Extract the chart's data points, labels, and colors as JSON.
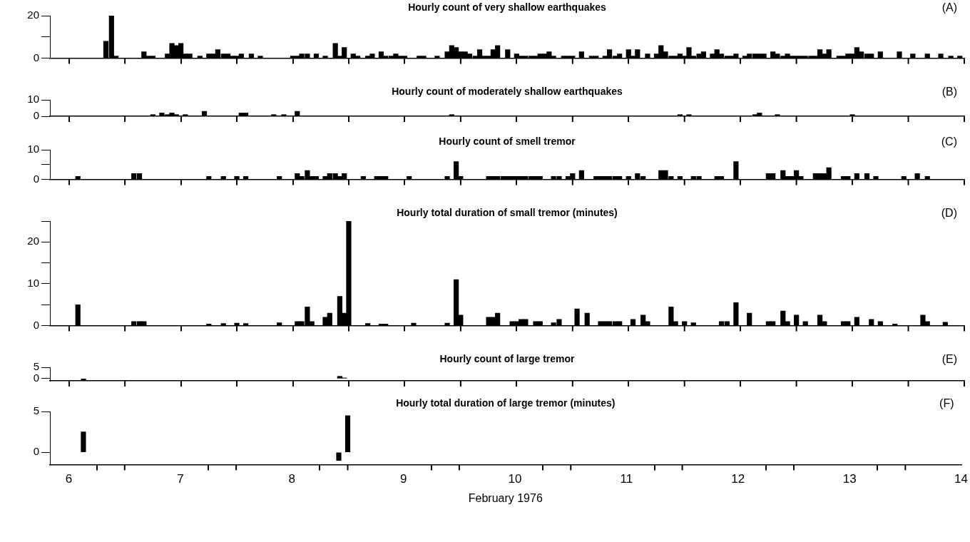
{
  "chart_data": [
    {
      "type": "bar",
      "title": "Hourly count of very shallow earthquakes",
      "annotations": [
        "(A)"
      ],
      "color": "#000000",
      "tick_labels": "y",
      "xlim": [
        5.83,
        14
      ],
      "xticks": [
        {
          "value": 6.5,
          "label": null
        },
        {
          "value": 7.5,
          "label": null
        },
        {
          "value": 8.5,
          "label": null
        },
        {
          "value": 9.5,
          "label": null
        },
        {
          "value": 10.5,
          "label": null
        },
        {
          "value": 11.5,
          "label": null
        },
        {
          "value": 12.5,
          "label": null
        },
        {
          "value": 13.5,
          "label": null
        }
      ],
      "ylim": [
        0,
        20
      ],
      "yticks": [
        0,
        {
          "value": 10,
          "label": null
        },
        20
      ],
      "x": [
        6.33,
        6.38,
        6.42,
        6.67,
        6.71,
        6.75,
        6.88,
        6.92,
        6.96,
        7.0,
        7.04,
        7.08,
        7.17,
        7.25,
        7.29,
        7.33,
        7.38,
        7.42,
        7.46,
        7.5,
        7.54,
        7.63,
        7.71,
        8.0,
        8.04,
        8.08,
        8.13,
        8.21,
        8.29,
        8.38,
        8.42,
        8.46,
        8.54,
        8.58,
        8.67,
        8.71,
        8.79,
        8.83,
        8.88,
        8.92,
        8.96,
        9.0,
        9.13,
        9.17,
        9.29,
        9.38,
        9.42,
        9.46,
        9.5,
        9.54,
        9.58,
        9.63,
        9.67,
        9.71,
        9.75,
        9.79,
        9.83,
        9.92,
        10.0,
        10.04,
        10.08,
        10.13,
        10.17,
        10.21,
        10.25,
        10.29,
        10.33,
        10.42,
        10.46,
        10.5,
        10.58,
        10.67,
        10.71,
        10.79,
        10.83,
        10.88,
        10.92,
        11.0,
        11.04,
        11.08,
        11.17,
        11.25,
        11.29,
        11.33,
        11.38,
        11.42,
        11.46,
        11.5,
        11.54,
        11.58,
        11.63,
        11.67,
        11.75,
        11.79,
        11.83,
        11.88,
        11.92,
        11.96,
        12.04,
        12.08,
        12.13,
        12.17,
        12.21,
        12.29,
        12.33,
        12.38,
        12.42,
        12.46,
        12.5,
        12.54,
        12.58,
        12.63,
        12.67,
        12.71,
        12.75,
        12.79,
        12.88,
        12.92,
        12.96,
        13.0,
        13.04,
        13.08,
        13.13,
        13.17,
        13.25,
        13.42,
        13.54,
        13.67,
        13.79,
        13.88,
        13.96
      ],
      "values": [
        8,
        20,
        1,
        3,
        1,
        1,
        2,
        7,
        6,
        7,
        2,
        2,
        1,
        2,
        2,
        4,
        2,
        2,
        1,
        1,
        2,
        2,
        1,
        1,
        1,
        2,
        2,
        2,
        1,
        7,
        1,
        5,
        2,
        1,
        1,
        2,
        3,
        1,
        1,
        2,
        1,
        1,
        1,
        1,
        1,
        3,
        6,
        5,
        3,
        3,
        2,
        1,
        4,
        1,
        1,
        4,
        6,
        4,
        2,
        1,
        1,
        1,
        1,
        2,
        2,
        3,
        1,
        1,
        1,
        1,
        3,
        1,
        1,
        1,
        4,
        1,
        2,
        4,
        1,
        4,
        2,
        2,
        6,
        3,
        1,
        1,
        2,
        1,
        5,
        1,
        2,
        3,
        2,
        4,
        2,
        1,
        1,
        2,
        1,
        2,
        2,
        2,
        2,
        3,
        2,
        1,
        2,
        1,
        1,
        1,
        1,
        1,
        1,
        4,
        2,
        4,
        1,
        1,
        2,
        2,
        5,
        3,
        2,
        2,
        3,
        3,
        2,
        2,
        2,
        1,
        1
      ]
    },
    {
      "type": "bar",
      "title": "Hourly count of moderately shallow earthquakes",
      "annotations": [
        "(B)"
      ],
      "color": "#000000",
      "tick_labels": "y",
      "xlim": [
        5.83,
        14
      ],
      "xticks": [
        {
          "value": 6.5,
          "label": null
        },
        {
          "value": 7.5,
          "label": null
        },
        {
          "value": 8.5,
          "label": null
        },
        {
          "value": 9.5,
          "label": null
        },
        {
          "value": 10.5,
          "label": null
        },
        {
          "value": 11.5,
          "label": null
        },
        {
          "value": 12.5,
          "label": null
        },
        {
          "value": 13.5,
          "label": null
        }
      ],
      "ylim": [
        0,
        10
      ],
      "yticks": [
        0,
        10
      ],
      "x": [
        6.75,
        6.83,
        6.88,
        6.92,
        6.96,
        7.04,
        7.21,
        7.54,
        7.58,
        7.83,
        7.92,
        8.04,
        9.42,
        11.46,
        11.54,
        12.13,
        12.17,
        12.33,
        13.0
      ],
      "values": [
        1,
        2,
        1,
        2,
        1,
        1,
        3,
        2,
        2,
        1,
        1,
        3,
        1,
        1,
        1,
        1,
        2,
        1,
        1
      ]
    },
    {
      "type": "bar",
      "title": "Hourly count of smell tremor",
      "annotations": [
        "(C)"
      ],
      "color": "#000000",
      "tick_labels": "y",
      "xlim": [
        5.83,
        14
      ],
      "xticks": [
        {
          "value": 6.5,
          "label": null
        },
        {
          "value": 7.5,
          "label": null
        },
        {
          "value": 8.5,
          "label": null
        },
        {
          "value": 9.5,
          "label": null
        },
        {
          "value": 10.5,
          "label": null
        },
        {
          "value": 11.5,
          "label": null
        },
        {
          "value": 12.5,
          "label": null
        },
        {
          "value": 13.5,
          "label": null
        }
      ],
      "ylim": [
        0,
        10
      ],
      "yticks": [
        0,
        {
          "value": 5,
          "label": null
        },
        10
      ],
      "x": [
        6.08,
        6.58,
        6.63,
        7.25,
        7.38,
        7.5,
        7.58,
        7.88,
        8.04,
        8.08,
        8.13,
        8.17,
        8.21,
        8.29,
        8.33,
        8.38,
        8.42,
        8.46,
        8.63,
        8.75,
        8.79,
        8.83,
        9.04,
        9.38,
        9.46,
        9.5,
        9.75,
        9.79,
        9.83,
        9.88,
        9.92,
        9.96,
        10.0,
        10.04,
        10.08,
        10.13,
        10.17,
        10.21,
        10.33,
        10.38,
        10.46,
        10.5,
        10.58,
        10.71,
        10.75,
        10.79,
        10.83,
        10.88,
        10.92,
        11.0,
        11.08,
        11.13,
        11.29,
        11.33,
        11.38,
        11.46,
        11.58,
        11.63,
        11.79,
        11.83,
        11.96,
        12.25,
        12.29,
        12.38,
        12.42,
        12.46,
        12.5,
        12.54,
        12.67,
        12.71,
        12.75,
        12.79,
        12.92,
        12.96,
        13.04,
        13.13,
        13.21,
        13.46,
        13.58,
        13.67
      ],
      "values": [
        1,
        2,
        2,
        1,
        1,
        1,
        1,
        1,
        2,
        1,
        3,
        1,
        1,
        1,
        2,
        2,
        1,
        2,
        1,
        1,
        1,
        1,
        1,
        1,
        6,
        1,
        1,
        1,
        1,
        1,
        1,
        1,
        1,
        1,
        1,
        1,
        1,
        1,
        1,
        1,
        1,
        2,
        3,
        1,
        1,
        1,
        1,
        1,
        1,
        1,
        2,
        1,
        3,
        3,
        1,
        1,
        1,
        1,
        1,
        1,
        6,
        2,
        2,
        3,
        1,
        1,
        3,
        1,
        2,
        2,
        2,
        4,
        1,
        1,
        2,
        2,
        1,
        1,
        2,
        1
      ]
    },
    {
      "type": "bar",
      "title": "Hourly total duration of small tremor (minutes)",
      "annotations": [
        "(D)"
      ],
      "color": "#000000",
      "tick_labels": "y",
      "xlim": [
        5.83,
        14
      ],
      "xticks": [
        {
          "value": 6.5,
          "label": null
        },
        {
          "value": 7.5,
          "label": null
        },
        {
          "value": 8.5,
          "label": null
        },
        {
          "value": 9.5,
          "label": null
        },
        {
          "value": 10.5,
          "label": null
        },
        {
          "value": 11.5,
          "label": null
        },
        {
          "value": 12.5,
          "label": null
        },
        {
          "value": 13.5,
          "label": null
        }
      ],
      "ylim": [
        0,
        25
      ],
      "yticks": [
        0,
        {
          "value": 5,
          "label": null
        },
        10,
        {
          "value": 15,
          "label": null
        },
        20,
        {
          "value": 25,
          "label": null
        }
      ],
      "x": [
        6.08,
        6.58,
        6.63,
        6.67,
        7.25,
        7.38,
        7.5,
        7.58,
        7.88,
        8.04,
        8.08,
        8.13,
        8.17,
        8.29,
        8.33,
        8.42,
        8.46,
        8.5,
        8.67,
        8.79,
        8.83,
        9.08,
        9.38,
        9.46,
        9.5,
        9.75,
        9.79,
        9.83,
        9.96,
        10.0,
        10.04,
        10.08,
        10.17,
        10.21,
        10.33,
        10.38,
        10.54,
        10.63,
        10.75,
        10.79,
        10.83,
        10.88,
        10.92,
        11.04,
        11.13,
        11.17,
        11.38,
        11.42,
        11.5,
        11.58,
        11.83,
        11.88,
        11.96,
        12.08,
        12.25,
        12.29,
        12.38,
        12.42,
        12.5,
        12.58,
        12.71,
        12.75,
        12.92,
        12.96,
        13.04,
        13.17,
        13.25,
        13.38,
        13.63,
        13.67,
        13.83
      ],
      "values": [
        5,
        1,
        1,
        1,
        0.4,
        0.5,
        0.6,
        0.5,
        0.7,
        1,
        1,
        4.5,
        1,
        2,
        3,
        7,
        3,
        25,
        0.5,
        0.4,
        0.4,
        0.6,
        0.6,
        11,
        2.5,
        2,
        2,
        3,
        1,
        1,
        1.5,
        1.5,
        1,
        1,
        0.7,
        1.5,
        4,
        3,
        1,
        1,
        1,
        1,
        1,
        1.5,
        2.5,
        1,
        4.5,
        1,
        1,
        0.7,
        1,
        1,
        5.5,
        3,
        1,
        1,
        3.5,
        1,
        2.5,
        1,
        2.5,
        1,
        1,
        1,
        2,
        1.5,
        1,
        0.4,
        2.5,
        1,
        0.8
      ]
    },
    {
      "type": "bar",
      "title": "Hourly count of large tremor",
      "annotations": [
        "(E)"
      ],
      "color": "#000000",
      "tick_labels": "y",
      "xlim": [
        5.83,
        14
      ],
      "xticks": [
        {
          "value": 6.5,
          "label": null
        },
        {
          "value": 7.5,
          "label": null
        },
        {
          "value": 8.5,
          "label": null
        },
        {
          "value": 9.5,
          "label": null
        },
        {
          "value": 10.5,
          "label": null
        },
        {
          "value": 11.5,
          "label": null
        },
        {
          "value": 12.5,
          "label": null
        },
        {
          "value": 13.5,
          "label": null
        }
      ],
      "ylim": [
        -1,
        5
      ],
      "yticks": [
        0,
        5
      ],
      "x": [
        6.13,
        8.42,
        8.46
      ],
      "values": [
        -1,
        1,
        0.3
      ]
    },
    {
      "type": "bar",
      "title": "Hourly total duration of large tremor (minutes)",
      "annotations": [
        "(F)"
      ],
      "color": "#000000",
      "xlabel": "February 1976",
      "xlim": [
        5.83,
        14
      ],
      "xticks": [
        6,
        {
          "value": 6.5,
          "label": null
        },
        7,
        {
          "value": 7.5,
          "label": null
        },
        8,
        {
          "value": 8.5,
          "label": null
        },
        9,
        {
          "value": 9.5,
          "label": null
        },
        10,
        {
          "value": 10.5,
          "label": null
        },
        11,
        {
          "value": 11.5,
          "label": null
        },
        12,
        {
          "value": 12.5,
          "label": null
        },
        13,
        {
          "value": 13.5,
          "label": null
        },
        14
      ],
      "ylim": [
        -1.5,
        5
      ],
      "yticks": [
        0,
        5
      ],
      "x": [
        6.13,
        8.42,
        8.5
      ],
      "values": [
        2.5,
        -1,
        4.5
      ]
    }
  ]
}
